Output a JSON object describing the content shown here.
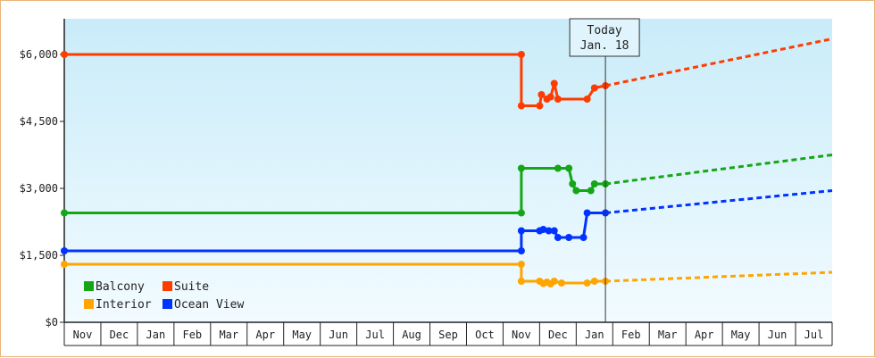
{
  "chart_data": {
    "type": "line",
    "x_months": [
      "Nov",
      "Dec",
      "Jan",
      "Feb",
      "Mar",
      "Apr",
      "May",
      "Jun",
      "Jul",
      "Aug",
      "Sep",
      "Oct",
      "Nov",
      "Dec",
      "Jan",
      "Feb",
      "Mar",
      "Apr",
      "May",
      "Jun",
      "Jul"
    ],
    "y_ticks": [
      "$0",
      "$1,500",
      "$3,000",
      "$4,500",
      "$6,000"
    ],
    "ylim": [
      0,
      6800
    ],
    "today": {
      "line1": "Today",
      "line2": "Jan. 18"
    },
    "legend_placement": "bottom-left",
    "grid": false,
    "series": [
      {
        "name": "Balcony",
        "color": "#15a615",
        "history": [
          [
            0,
            2450
          ],
          [
            12.5,
            2450
          ],
          [
            12.5,
            3450
          ],
          [
            13.5,
            3450
          ],
          [
            13.8,
            3450
          ],
          [
            13.9,
            3100
          ],
          [
            14.0,
            2950
          ],
          [
            14.4,
            2950
          ],
          [
            14.5,
            3100
          ],
          [
            14.8,
            3100
          ]
        ],
        "forecast": [
          [
            14.8,
            3100
          ],
          [
            21.0,
            3750
          ]
        ]
      },
      {
        "name": "Suite",
        "color": "#ff3c00",
        "history": [
          [
            0,
            6000
          ],
          [
            12.5,
            6000
          ],
          [
            12.5,
            4850
          ],
          [
            13.0,
            4850
          ],
          [
            13.05,
            5100
          ],
          [
            13.2,
            5000
          ],
          [
            13.3,
            5050
          ],
          [
            13.4,
            5350
          ],
          [
            13.5,
            5000
          ],
          [
            14.3,
            5000
          ],
          [
            14.5,
            5250
          ],
          [
            14.8,
            5300
          ]
        ],
        "forecast": [
          [
            14.8,
            5300
          ],
          [
            21.0,
            6350
          ]
        ]
      },
      {
        "name": "Interior",
        "color": "#ffa500",
        "history": [
          [
            0,
            1300
          ],
          [
            12.5,
            1300
          ],
          [
            12.5,
            920
          ],
          [
            13.0,
            920
          ],
          [
            13.1,
            870
          ],
          [
            13.2,
            900
          ],
          [
            13.3,
            860
          ],
          [
            13.4,
            920
          ],
          [
            13.6,
            880
          ],
          [
            14.3,
            880
          ],
          [
            14.5,
            920
          ],
          [
            14.8,
            920
          ]
        ],
        "forecast": [
          [
            14.8,
            920
          ],
          [
            21.0,
            1120
          ]
        ]
      },
      {
        "name": "Ocean View",
        "color": "#0033ff",
        "history": [
          [
            0,
            1600
          ],
          [
            12.5,
            1600
          ],
          [
            12.5,
            2050
          ],
          [
            13.0,
            2050
          ],
          [
            13.1,
            2080
          ],
          [
            13.25,
            2050
          ],
          [
            13.4,
            2050
          ],
          [
            13.5,
            1900
          ],
          [
            13.8,
            1900
          ],
          [
            14.2,
            1900
          ],
          [
            14.3,
            2450
          ],
          [
            14.8,
            2450
          ]
        ],
        "forecast": [
          [
            14.8,
            2450
          ],
          [
            21.0,
            2950
          ]
        ]
      }
    ],
    "legend": [
      {
        "name": "Balcony",
        "color": "#15a615"
      },
      {
        "name": "Suite",
        "color": "#ff3c00"
      },
      {
        "name": "Interior",
        "color": "#ffa500"
      },
      {
        "name": "Ocean View",
        "color": "#0033ff"
      }
    ]
  }
}
